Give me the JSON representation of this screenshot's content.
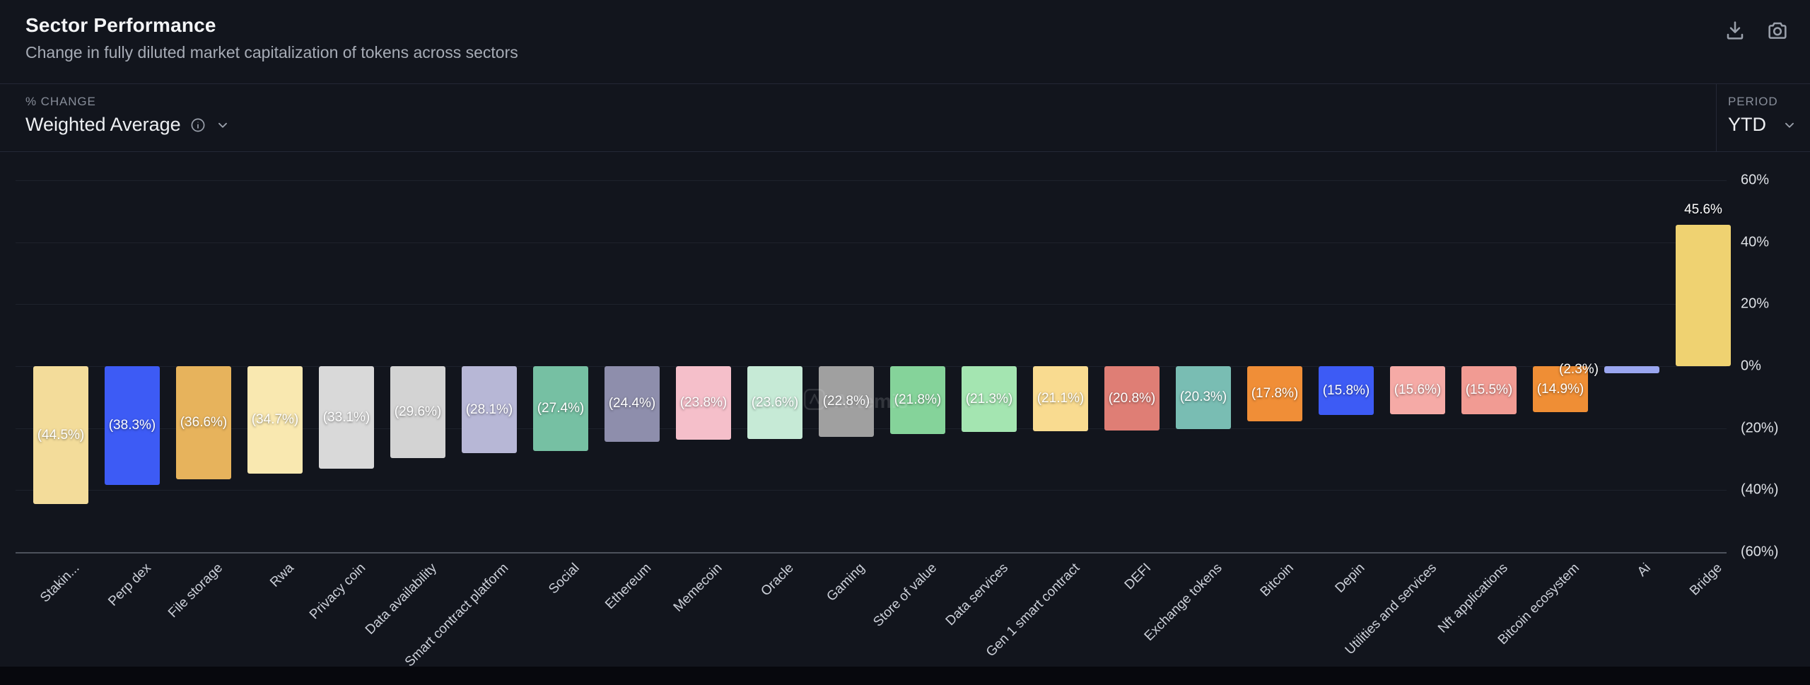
{
  "header": {
    "title": "Sector Performance",
    "subtitle": "Change in fully diluted market capitalization of tokens across sectors"
  },
  "controls": {
    "metric_label": "% CHANGE",
    "metric_value": "Weighted Average",
    "period_label": "PERIOD",
    "period_value": "YTD"
  },
  "watermark": "Artemis",
  "icons": {
    "header": [
      "download-icon",
      "camera-icon"
    ],
    "metric": [
      "info-icon",
      "chevron-down-icon"
    ],
    "period": [
      "chevron-down-icon"
    ]
  },
  "chart_data": {
    "type": "bar",
    "title": "Sector Performance",
    "xlabel": "",
    "ylabel": "",
    "ylim": [
      -60,
      60
    ],
    "grid": true,
    "legend_position": "none",
    "ytick_values": [
      60,
      40,
      20,
      0,
      -20,
      -40,
      -60
    ],
    "ytick_labels": [
      "60%",
      "40%",
      "20%",
      "0%",
      "(20%)",
      "(40%)",
      "(60%)"
    ],
    "categories": [
      "Stakin...",
      "Perp dex",
      "File storage",
      "Rwa",
      "Privacy coin",
      "Data availability",
      "Smart contract platform",
      "Social",
      "Ethereum",
      "Memecoin",
      "Oracle",
      "Gaming",
      "Store of value",
      "Data services",
      "Gen 1 smart contract",
      "DEFI",
      "Exchange tokens",
      "Bitcoin",
      "Depin",
      "Utilities and services",
      "Nft applications",
      "Bitcoin ecosystem",
      "Ai",
      "Bridge"
    ],
    "values": [
      -44.5,
      -38.3,
      -36.6,
      -34.7,
      -33.1,
      -29.6,
      -28.1,
      -27.4,
      -24.4,
      -23.8,
      -23.6,
      -22.8,
      -21.8,
      -21.3,
      -21.1,
      -20.8,
      -20.3,
      -17.8,
      -15.8,
      -15.6,
      -15.5,
      -14.9,
      -2.3,
      45.6
    ],
    "labels": [
      "(44.5%)",
      "(38.3%)",
      "(36.6%)",
      "(34.7%)",
      "(33.1%)",
      "(29.6%)",
      "(28.1%)",
      "(27.4%)",
      "(24.4%)",
      "(23.8%)",
      "(23.6%)",
      "(22.8%)",
      "(21.8%)",
      "(21.3%)",
      "(21.1%)",
      "(20.8%)",
      "(20.3%)",
      "(17.8%)",
      "(15.8%)",
      "(15.6%)",
      "(15.5%)",
      "(14.9%)",
      "(2.3%)",
      "45.6%"
    ],
    "colors": [
      "#f3dc9a",
      "#3d5bf5",
      "#e7b35c",
      "#f9e8b0",
      "#d9d9d9",
      "#d3d3d3",
      "#b7b7d6",
      "#76c0a3",
      "#8e8eac",
      "#f5bfca",
      "#c6ead6",
      "#a0a0a0",
      "#85d39a",
      "#a4e5b1",
      "#f9db90",
      "#df7e75",
      "#79bdb3",
      "#f08e37",
      "#3d5bf5",
      "#f5aaa6",
      "#f19b93",
      "#ef8e35",
      "#9aa6f0",
      "#efd271"
    ]
  }
}
